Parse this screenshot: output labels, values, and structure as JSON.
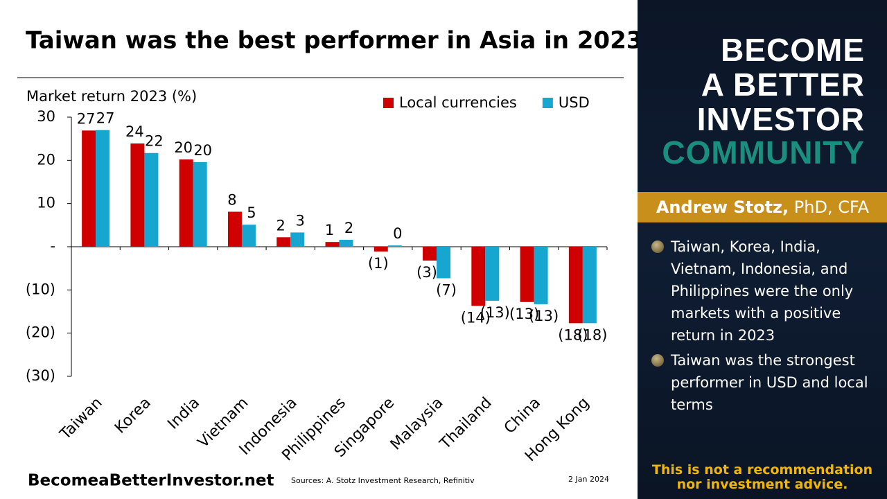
{
  "header": {
    "title": "Taiwan was the best performer in Asia in 2023"
  },
  "chart_data": {
    "type": "bar",
    "y_label": "Market return 2023 (%)",
    "categories": [
      "Taiwan",
      "Korea",
      "India",
      "Vietnam",
      "Indonesia",
      "Philippines",
      "Singapore",
      "Malaysia",
      "Thailand",
      "China",
      "Hong Kong"
    ],
    "series": [
      {
        "name": "Local currencies",
        "color": "#d00000",
        "values": [
          26.9,
          23.9,
          20.2,
          8.1,
          2.2,
          1.1,
          -1.1,
          -3.2,
          -13.7,
          -12.8,
          -17.7
        ],
        "value_labels": [
          "27",
          "24",
          "20",
          "8",
          "2",
          "1",
          "(1)",
          "(3)",
          "(14)",
          "(13)",
          "(18)"
        ]
      },
      {
        "name": "USD",
        "color": "#17a6d0",
        "values": [
          27.0,
          21.7,
          19.6,
          5.1,
          3.3,
          1.6,
          0.3,
          -7.3,
          -12.5,
          -13.3,
          -17.7
        ],
        "value_labels": [
          "27",
          "22",
          "20",
          "5",
          "3",
          "2",
          "0",
          "(7)",
          "(13)",
          "(13)",
          "(18)"
        ]
      }
    ],
    "ylim": [
      -30,
      30
    ],
    "yticks": [
      30,
      20,
      10,
      {
        "value": 0,
        "label": "-"
      },
      {
        "value": -10,
        "label": "(10)"
      },
      {
        "value": -20,
        "label": "(20)"
      },
      {
        "value": -30,
        "label": "(30)"
      }
    ],
    "grid": false,
    "legend": "upper right"
  },
  "footer": {
    "site": "BecomeaBetterInvestor.net",
    "sources": "Sources: A. Stotz Investment Research, Refinitiv",
    "date": "2 Jan 2024"
  },
  "sidebar": {
    "brand": [
      "BECOME",
      "A BETTER",
      "INVESTOR",
      "COMMUNITY"
    ],
    "author": {
      "name": "Andrew Stotz,",
      "credentials": "PhD, CFA"
    },
    "bullets": [
      "Taiwan, Korea, India, Vietnam, Indonesia, and Philippines were the only markets with a positive return in 2023",
      "Taiwan was the strongest performer in USD and local terms"
    ],
    "disclaimer": [
      "This is not a recommendation",
      "nor investment advice."
    ]
  }
}
